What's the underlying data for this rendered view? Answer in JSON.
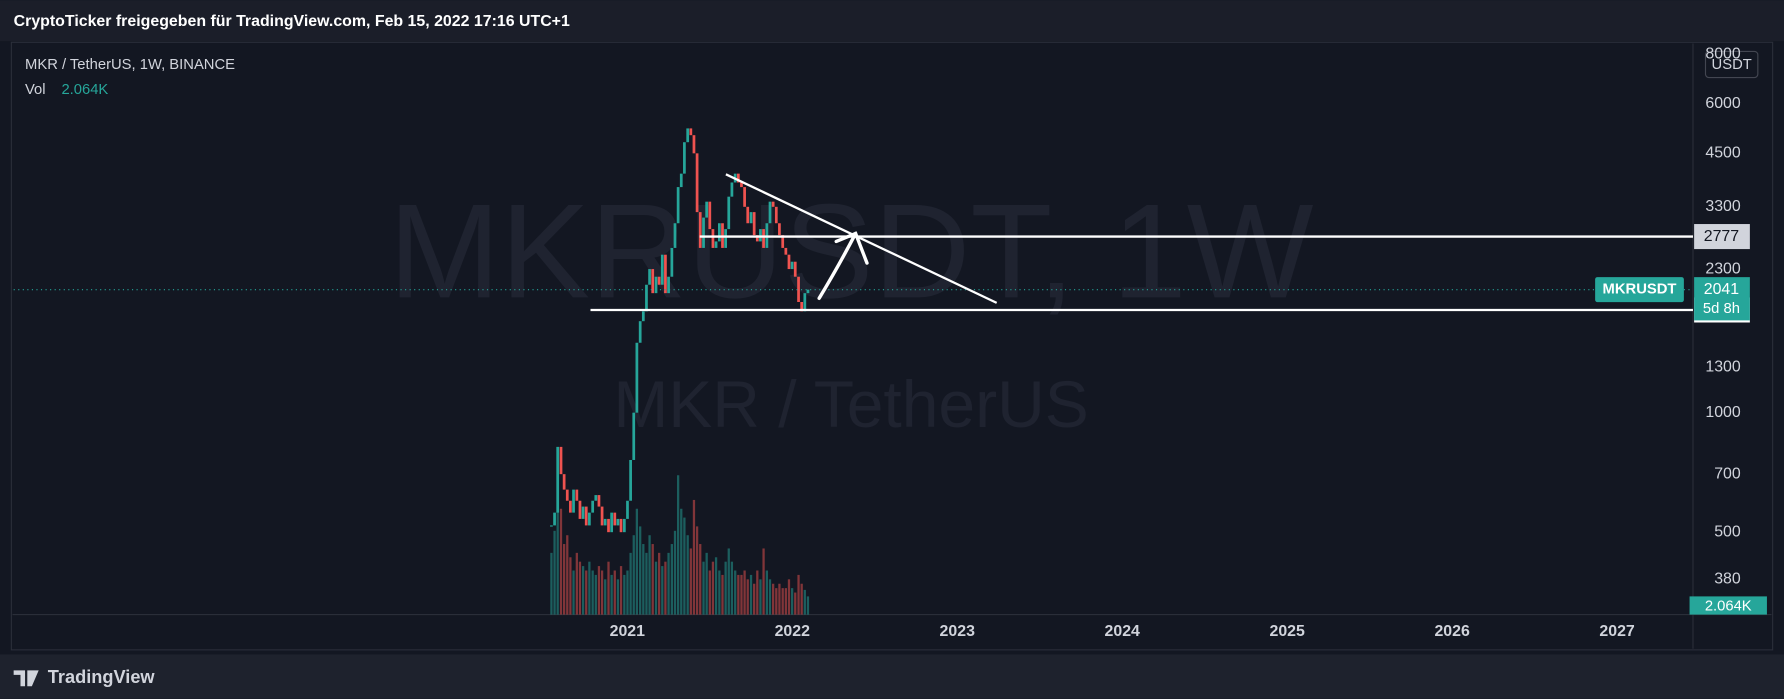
{
  "header": "CryptoTicker freigegeben für TradingView.com, Feb 15, 2022 17:16 UTC+1",
  "footer": "TradingView",
  "chart_data": {
    "type": "candlestick",
    "title": "MKR / TetherUS, 1W, BINANCE",
    "watermark": "MKRUSDT, 1W",
    "watermark_subtitle": "MKR / TetherUS",
    "currency": "USDT",
    "log_scale": true,
    "grid": false,
    "up_color": "#26a69a",
    "down_color": "#ef5350",
    "x": [
      2020.54,
      2020.559,
      2020.578,
      2020.598,
      2020.617,
      2020.636,
      2020.655,
      2020.674,
      2020.694,
      2020.713,
      2020.732,
      2020.751,
      2020.77,
      2020.79,
      2020.809,
      2020.828,
      2020.847,
      2020.866,
      2020.886,
      2020.905,
      2020.924,
      2020.943,
      2020.962,
      2020.982,
      2021.001,
      2021.02,
      2021.039,
      2021.058,
      2021.078,
      2021.097,
      2021.116,
      2021.135,
      2021.154,
      2021.174,
      2021.193,
      2021.212,
      2021.231,
      2021.25,
      2021.27,
      2021.289,
      2021.308,
      2021.327,
      2021.346,
      2021.366,
      2021.385,
      2021.404,
      2021.423,
      2021.442,
      2021.462,
      2021.481,
      2021.5,
      2021.519,
      2021.538,
      2021.558,
      2021.577,
      2021.596,
      2021.615,
      2021.634,
      2021.654,
      2021.673,
      2021.692,
      2021.711,
      2021.73,
      2021.75,
      2021.769,
      2021.788,
      2021.807,
      2021.826,
      2021.846,
      2021.865,
      2021.884,
      2021.903,
      2021.922,
      2021.942,
      2021.961,
      2021.98,
      2021.999,
      2022.018,
      2022.038,
      2022.057,
      2022.076,
      2022.095
    ],
    "series": [
      {
        "name": "MKRUSDT",
        "values": [
          520,
          560,
          820,
          700,
          640,
          600,
          560,
          640,
          600,
          540,
          580,
          520,
          560,
          600,
          620,
          580,
          520,
          540,
          500,
          560,
          520,
          540,
          500,
          540,
          600,
          760,
          1000,
          1500,
          1700,
          1800,
          2100,
          2300,
          2000,
          2200,
          2100,
          2500,
          2000,
          2200,
          2600,
          3000,
          3700,
          4000,
          4800,
          5200,
          5000,
          4500,
          3200,
          2600,
          3100,
          3400,
          2900,
          2600,
          2700,
          3000,
          2600,
          2900,
          3500,
          3800,
          4000,
          3800,
          3700,
          3300,
          3000,
          3200,
          2800,
          2700,
          2900,
          2600,
          3000,
          3400,
          3300,
          3000,
          2800,
          2600,
          2500,
          2300,
          2400,
          2200,
          1900,
          1800,
          2000,
          2041
        ]
      }
    ],
    "volume": {
      "name": "Vol",
      "axis": "y2",
      "value_label": "2.064K",
      "values": [
        7000,
        9500,
        16000,
        12000,
        8000,
        9000,
        6500,
        5000,
        7000,
        6000,
        5500,
        5000,
        6000,
        5000,
        4500,
        5500,
        5000,
        4000,
        6000,
        4500,
        5000,
        4000,
        5500,
        4500,
        5000,
        7000,
        9000,
        12000,
        10000,
        8000,
        7000,
        9000,
        8000,
        6000,
        7000,
        5500,
        6000,
        7000,
        8000,
        9500,
        15800,
        12000,
        11000,
        9000,
        7500,
        13000,
        10000,
        8000,
        6000,
        7000,
        5000,
        6000,
        6500,
        5000,
        4500,
        6000,
        7500,
        6000,
        5000,
        4500,
        4500,
        5000,
        4000,
        4500,
        3500,
        5000,
        4000,
        7500,
        5000,
        4000,
        3500,
        3000,
        3500,
        3000,
        3000,
        4000,
        3000,
        2500,
        4500,
        3500,
        2800,
        2064
      ]
    },
    "xlim": [
      2017.28,
      2027.46
    ],
    "xticks": [
      2021,
      2022,
      2023,
      2024,
      2025,
      2026,
      2027
    ],
    "ylim": [
      310,
      8400
    ],
    "yticks": [
      380,
      500,
      700,
      1000,
      1300,
      2300,
      3300,
      4500,
      6000,
      8000
    ],
    "y2lim": [
      0,
      64500
    ],
    "levels": [
      2777,
      1814
    ],
    "price_tag": {
      "label": "MKRUSDT",
      "value": 2041,
      "countdown": "5d 8h"
    }
  }
}
